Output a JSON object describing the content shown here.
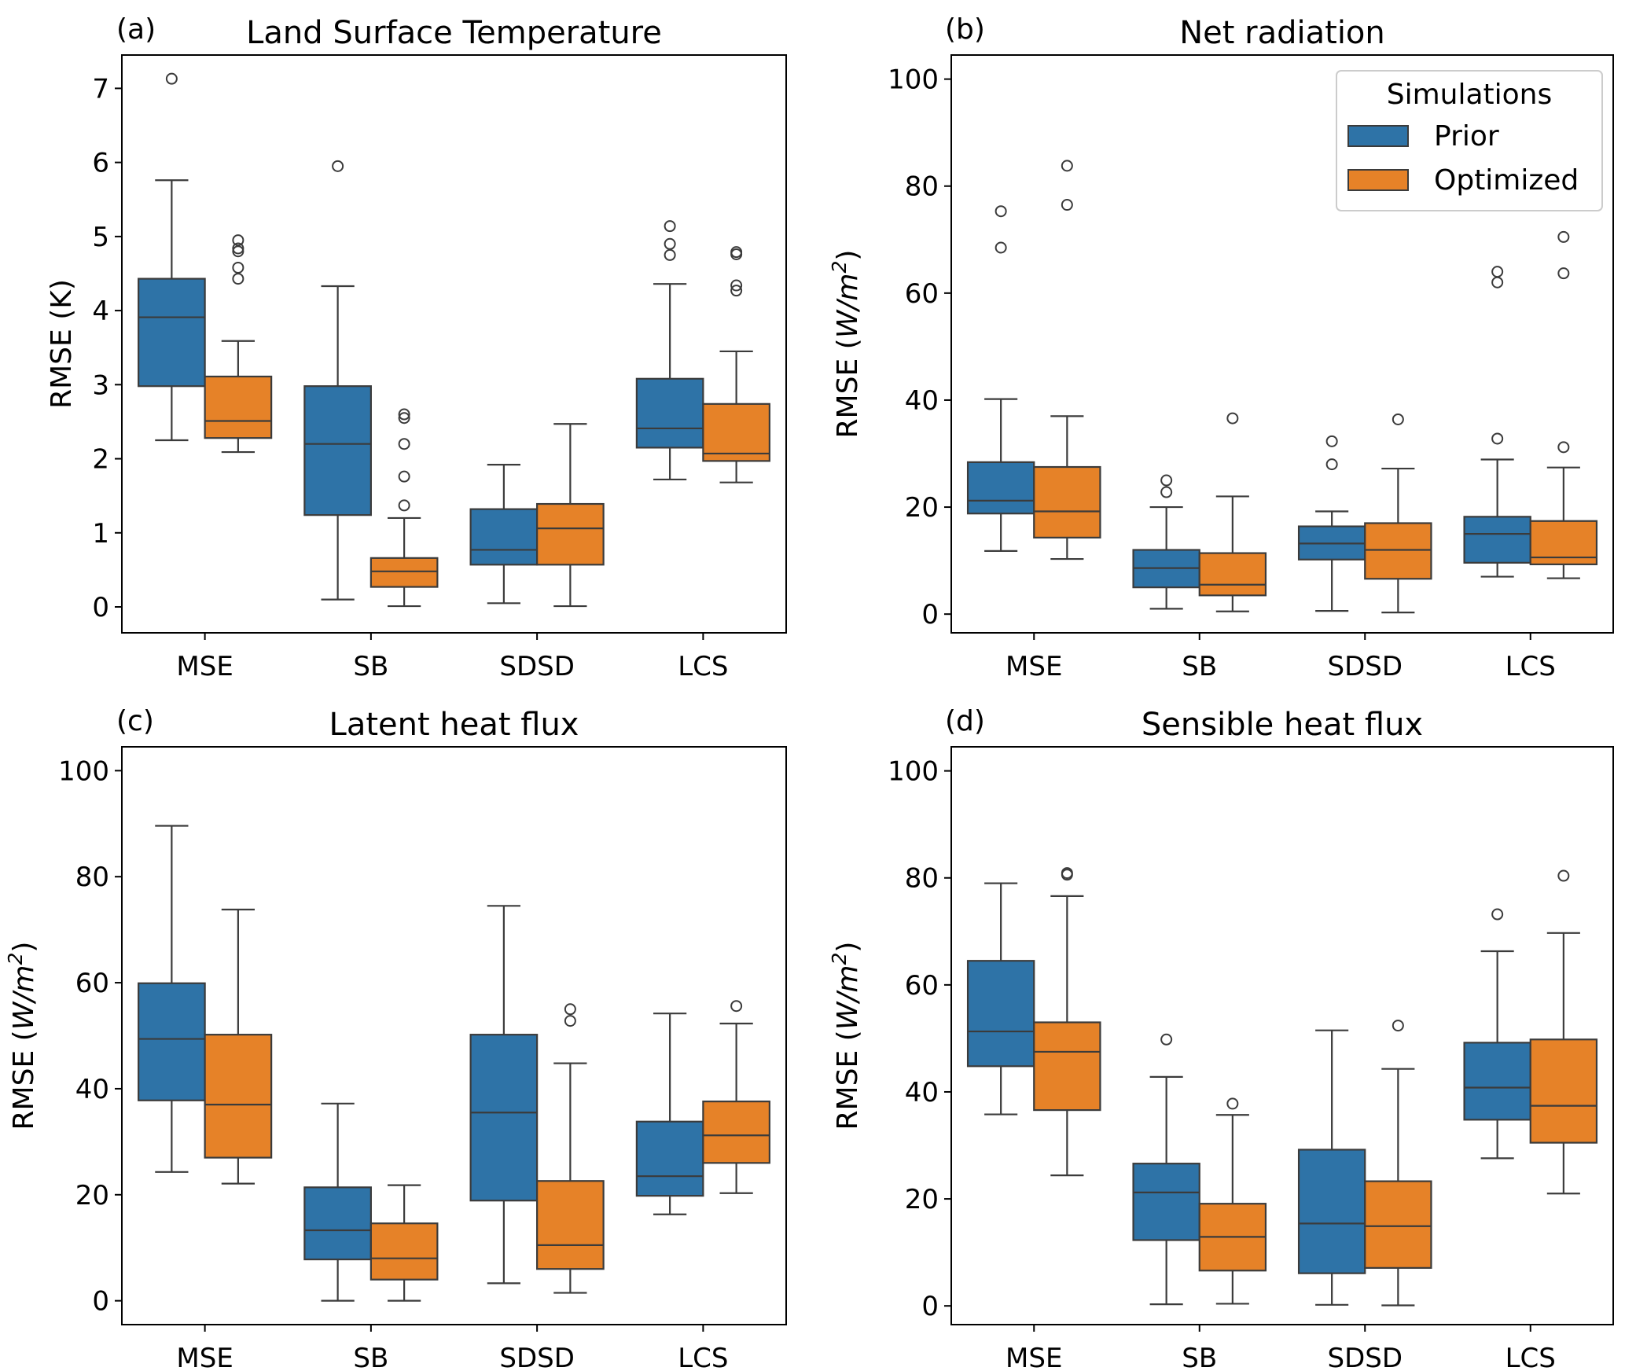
{
  "colors": {
    "prior": "#2e73a7",
    "optimized": "#e68228",
    "line": "#3b3b3b"
  },
  "legend": {
    "title": "Simulations",
    "items": [
      "Prior",
      "Optimized"
    ],
    "placement": "top-right of panel (b)"
  },
  "chart_data": [
    {
      "type": "boxplot",
      "panel_label": "(a)",
      "title": "Land Surface Temperature",
      "ylabel": "RMSE (K)",
      "ylabel_unit": "",
      "categories": [
        "MSE",
        "SB",
        "SDSD",
        "LCS"
      ],
      "ylim": [
        -0.35,
        7.45
      ],
      "yticks": [
        0,
        1,
        2,
        3,
        4,
        5,
        6,
        7
      ],
      "series": [
        {
          "name": "Prior",
          "boxes": [
            {
              "wlo": 2.25,
              "q1": 2.98,
              "med": 3.91,
              "q3": 4.43,
              "whi": 5.76,
              "fliers": [
                7.13
              ]
            },
            {
              "wlo": 0.1,
              "q1": 1.24,
              "med": 2.2,
              "q3": 2.98,
              "whi": 4.33,
              "fliers": [
                5.95
              ]
            },
            {
              "wlo": 0.05,
              "q1": 0.57,
              "med": 0.77,
              "q3": 1.32,
              "whi": 1.92,
              "fliers": []
            },
            {
              "wlo": 1.72,
              "q1": 2.15,
              "med": 2.41,
              "q3": 3.08,
              "whi": 4.36,
              "fliers": [
                4.75,
                4.9,
                5.14
              ]
            }
          ]
        },
        {
          "name": "Optimized",
          "boxes": [
            {
              "wlo": 2.09,
              "q1": 2.28,
              "med": 2.51,
              "q3": 3.11,
              "whi": 3.59,
              "fliers": [
                4.43,
                4.58,
                4.8,
                4.84,
                4.95
              ]
            },
            {
              "wlo": 0.01,
              "q1": 0.27,
              "med": 0.48,
              "q3": 0.66,
              "whi": 1.2,
              "fliers": [
                1.37,
                1.76,
                2.2,
                2.55,
                2.6
              ]
            },
            {
              "wlo": 0.01,
              "q1": 0.57,
              "med": 1.06,
              "q3": 1.39,
              "whi": 2.47,
              "fliers": []
            },
            {
              "wlo": 1.68,
              "q1": 1.97,
              "med": 2.07,
              "q3": 2.74,
              "whi": 3.45,
              "fliers": [
                4.27,
                4.34,
                4.76,
                4.79
              ]
            }
          ]
        }
      ]
    },
    {
      "type": "boxplot",
      "panel_label": "(b)",
      "title": "Net radiation",
      "ylabel": "RMSE (",
      "ylabel_unit": "W/m",
      "categories": [
        "MSE",
        "SB",
        "SDSD",
        "LCS"
      ],
      "ylim": [
        -3.5,
        104.5
      ],
      "yticks": [
        0,
        20,
        40,
        60,
        80,
        100
      ],
      "show_legend": true,
      "series": [
        {
          "name": "Prior",
          "boxes": [
            {
              "wlo": 11.8,
              "q1": 18.8,
              "med": 21.2,
              "q3": 28.4,
              "whi": 40.2,
              "fliers": [
                68.5,
                75.3
              ]
            },
            {
              "wlo": 1.0,
              "q1": 5.0,
              "med": 8.6,
              "q3": 12.0,
              "whi": 20.0,
              "fliers": [
                22.8,
                25.0
              ]
            },
            {
              "wlo": 0.6,
              "q1": 10.2,
              "med": 13.2,
              "q3": 16.4,
              "whi": 19.2,
              "fliers": [
                28.0,
                32.3
              ]
            },
            {
              "wlo": 7.0,
              "q1": 9.6,
              "med": 15.0,
              "q3": 18.2,
              "whi": 28.9,
              "fliers": [
                32.8,
                62.0,
                64.0
              ]
            }
          ]
        },
        {
          "name": "Optimized",
          "boxes": [
            {
              "wlo": 10.3,
              "q1": 14.3,
              "med": 19.2,
              "q3": 27.5,
              "whi": 37.0,
              "fliers": [
                76.5,
                83.8
              ]
            },
            {
              "wlo": 0.5,
              "q1": 3.5,
              "med": 5.5,
              "q3": 11.4,
              "whi": 22.0,
              "fliers": [
                36.6
              ]
            },
            {
              "wlo": 0.3,
              "q1": 6.6,
              "med": 12.0,
              "q3": 17.0,
              "whi": 27.2,
              "fliers": [
                36.4
              ]
            },
            {
              "wlo": 6.7,
              "q1": 9.3,
              "med": 10.6,
              "q3": 17.4,
              "whi": 27.4,
              "fliers": [
                31.2,
                63.7,
                70.5
              ]
            }
          ]
        }
      ]
    },
    {
      "type": "boxplot",
      "panel_label": "(c)",
      "title": "Latent heat flux",
      "ylabel": "RMSE (",
      "ylabel_unit": "W/m",
      "categories": [
        "MSE",
        "SB",
        "SDSD",
        "LCS"
      ],
      "ylim": [
        -4.5,
        104.5
      ],
      "yticks": [
        0,
        20,
        40,
        60,
        80,
        100
      ],
      "series": [
        {
          "name": "Prior",
          "boxes": [
            {
              "wlo": 24.3,
              "q1": 37.8,
              "med": 49.4,
              "q3": 59.9,
              "whi": 89.6,
              "fliers": []
            },
            {
              "wlo": 0.0,
              "q1": 7.8,
              "med": 13.3,
              "q3": 21.4,
              "whi": 37.2,
              "fliers": []
            },
            {
              "wlo": 3.3,
              "q1": 18.9,
              "med": 35.5,
              "q3": 50.2,
              "whi": 74.5,
              "fliers": []
            },
            {
              "wlo": 16.3,
              "q1": 19.8,
              "med": 23.5,
              "q3": 33.8,
              "whi": 54.2,
              "fliers": []
            }
          ]
        },
        {
          "name": "Optimized",
          "boxes": [
            {
              "wlo": 22.1,
              "q1": 27.0,
              "med": 37.0,
              "q3": 50.2,
              "whi": 73.8,
              "fliers": []
            },
            {
              "wlo": 0.0,
              "q1": 4.0,
              "med": 8.0,
              "q3": 14.6,
              "whi": 21.8,
              "fliers": []
            },
            {
              "wlo": 1.5,
              "q1": 6.0,
              "med": 10.5,
              "q3": 22.6,
              "whi": 44.8,
              "fliers": [
                52.8,
                55.0
              ]
            },
            {
              "wlo": 20.3,
              "q1": 26.0,
              "med": 31.2,
              "q3": 37.6,
              "whi": 52.3,
              "fliers": [
                55.6
              ]
            }
          ]
        }
      ]
    },
    {
      "type": "boxplot",
      "panel_label": "(d)",
      "title": "Sensible heat flux",
      "ylabel": "RMSE (",
      "ylabel_unit": "W/m",
      "categories": [
        "MSE",
        "SB",
        "SDSD",
        "LCS"
      ],
      "ylim": [
        -3.5,
        104.5
      ],
      "yticks": [
        0,
        20,
        40,
        60,
        80,
        100
      ],
      "series": [
        {
          "name": "Prior",
          "boxes": [
            {
              "wlo": 35.8,
              "q1": 44.8,
              "med": 51.3,
              "q3": 64.5,
              "whi": 79.0,
              "fliers": []
            },
            {
              "wlo": 0.3,
              "q1": 12.3,
              "med": 21.2,
              "q3": 26.6,
              "whi": 42.8,
              "fliers": [
                49.8
              ]
            },
            {
              "wlo": 0.2,
              "q1": 6.1,
              "med": 15.4,
              "q3": 29.2,
              "whi": 51.5,
              "fliers": []
            },
            {
              "wlo": 27.6,
              "q1": 34.8,
              "med": 40.8,
              "q3": 49.2,
              "whi": 66.3,
              "fliers": [
                73.2
              ]
            }
          ]
        },
        {
          "name": "Optimized",
          "boxes": [
            {
              "wlo": 24.4,
              "q1": 36.6,
              "med": 47.5,
              "q3": 53.0,
              "whi": 76.6,
              "fliers": [
                80.6,
                80.9
              ]
            },
            {
              "wlo": 0.4,
              "q1": 6.6,
              "med": 12.9,
              "q3": 19.1,
              "whi": 35.7,
              "fliers": [
                37.8
              ]
            },
            {
              "wlo": 0.1,
              "q1": 7.1,
              "med": 14.9,
              "q3": 23.3,
              "whi": 44.3,
              "fliers": [
                52.4
              ]
            },
            {
              "wlo": 21.0,
              "q1": 30.5,
              "med": 37.4,
              "q3": 49.8,
              "whi": 69.7,
              "fliers": [
                80.4
              ]
            }
          ]
        }
      ]
    }
  ]
}
